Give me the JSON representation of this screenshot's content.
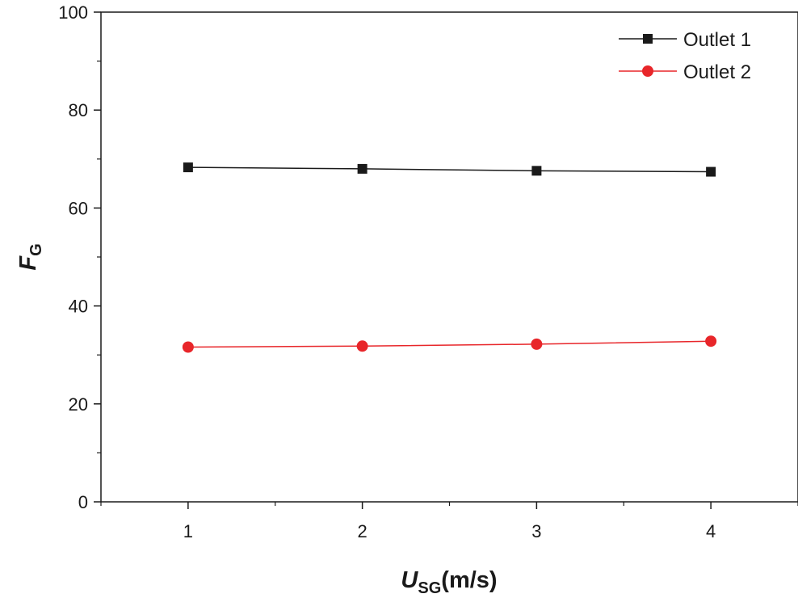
{
  "chart_data": {
    "type": "line",
    "title": "",
    "xlabel": {
      "main": "U",
      "sub": "SG",
      "suffix": "(m/s)"
    },
    "ylabel": {
      "main": "F",
      "sub": "G"
    },
    "x": [
      1,
      2,
      3,
      4
    ],
    "xlim": [
      0.5,
      4.5
    ],
    "ylim": [
      0,
      100
    ],
    "xticks": [
      1,
      2,
      3,
      4
    ],
    "yticks": [
      0,
      20,
      40,
      60,
      80,
      100
    ],
    "grid": false,
    "legend_position": "top-right",
    "series": [
      {
        "name": "Outlet 1",
        "values": [
          68.3,
          68.0,
          67.6,
          67.4
        ],
        "color": "#1a1a1a",
        "marker": "square"
      },
      {
        "name": "Outlet 2",
        "values": [
          31.6,
          31.8,
          32.2,
          32.8
        ],
        "color": "#e8262a",
        "marker": "circle"
      }
    ]
  }
}
